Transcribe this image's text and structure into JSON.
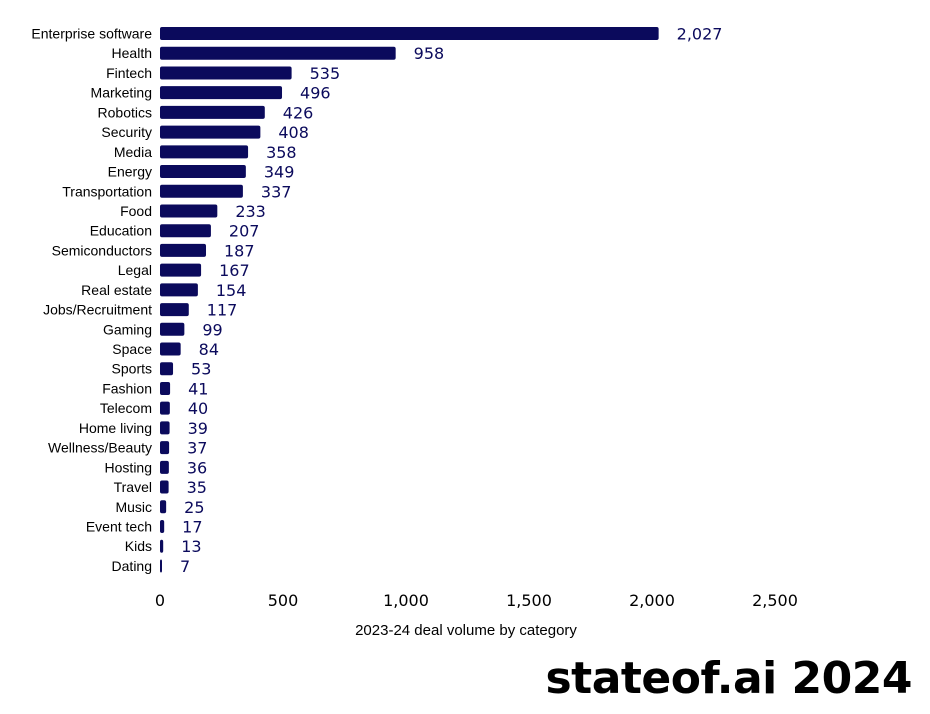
{
  "chart_data": {
    "type": "bar",
    "orientation": "horizontal",
    "categories": [
      "Enterprise software",
      "Health",
      "Fintech",
      "Marketing",
      "Robotics",
      "Security",
      "Media",
      "Energy",
      "Transportation",
      "Food",
      "Education",
      "Semiconductors",
      "Legal",
      "Real estate",
      "Jobs/Recruitment",
      "Gaming",
      "Space",
      "Sports",
      "Fashion",
      "Telecom",
      "Home living",
      "Wellness/Beauty",
      "Hosting",
      "Travel",
      "Music",
      "Event tech",
      "Kids",
      "Dating"
    ],
    "values": [
      2027,
      958,
      535,
      496,
      426,
      408,
      358,
      349,
      337,
      233,
      207,
      187,
      167,
      154,
      117,
      99,
      84,
      53,
      41,
      40,
      39,
      37,
      36,
      35,
      25,
      17,
      13,
      7
    ],
    "value_labels": [
      "2,027",
      "958",
      "535",
      "496",
      "426",
      "408",
      "358",
      "349",
      "337",
      "233",
      "207",
      "187",
      "167",
      "154",
      "117",
      "99",
      "84",
      "53",
      "41",
      "40",
      "39",
      "37",
      "36",
      "35",
      "25",
      "17",
      "13",
      "7"
    ],
    "title": "",
    "xlabel": "2023-24 deal volume by category",
    "ylabel": "",
    "xlim": [
      0,
      2500
    ],
    "xticks": [
      0,
      500,
      1000,
      1500,
      2000,
      2500
    ],
    "xtick_labels": [
      "0",
      "500",
      "1,000",
      "1,500",
      "2,000",
      "2,500"
    ],
    "grid": false,
    "legend": "none",
    "bar_color": "#0b0a5c"
  },
  "watermark": "stateof.ai 2024"
}
